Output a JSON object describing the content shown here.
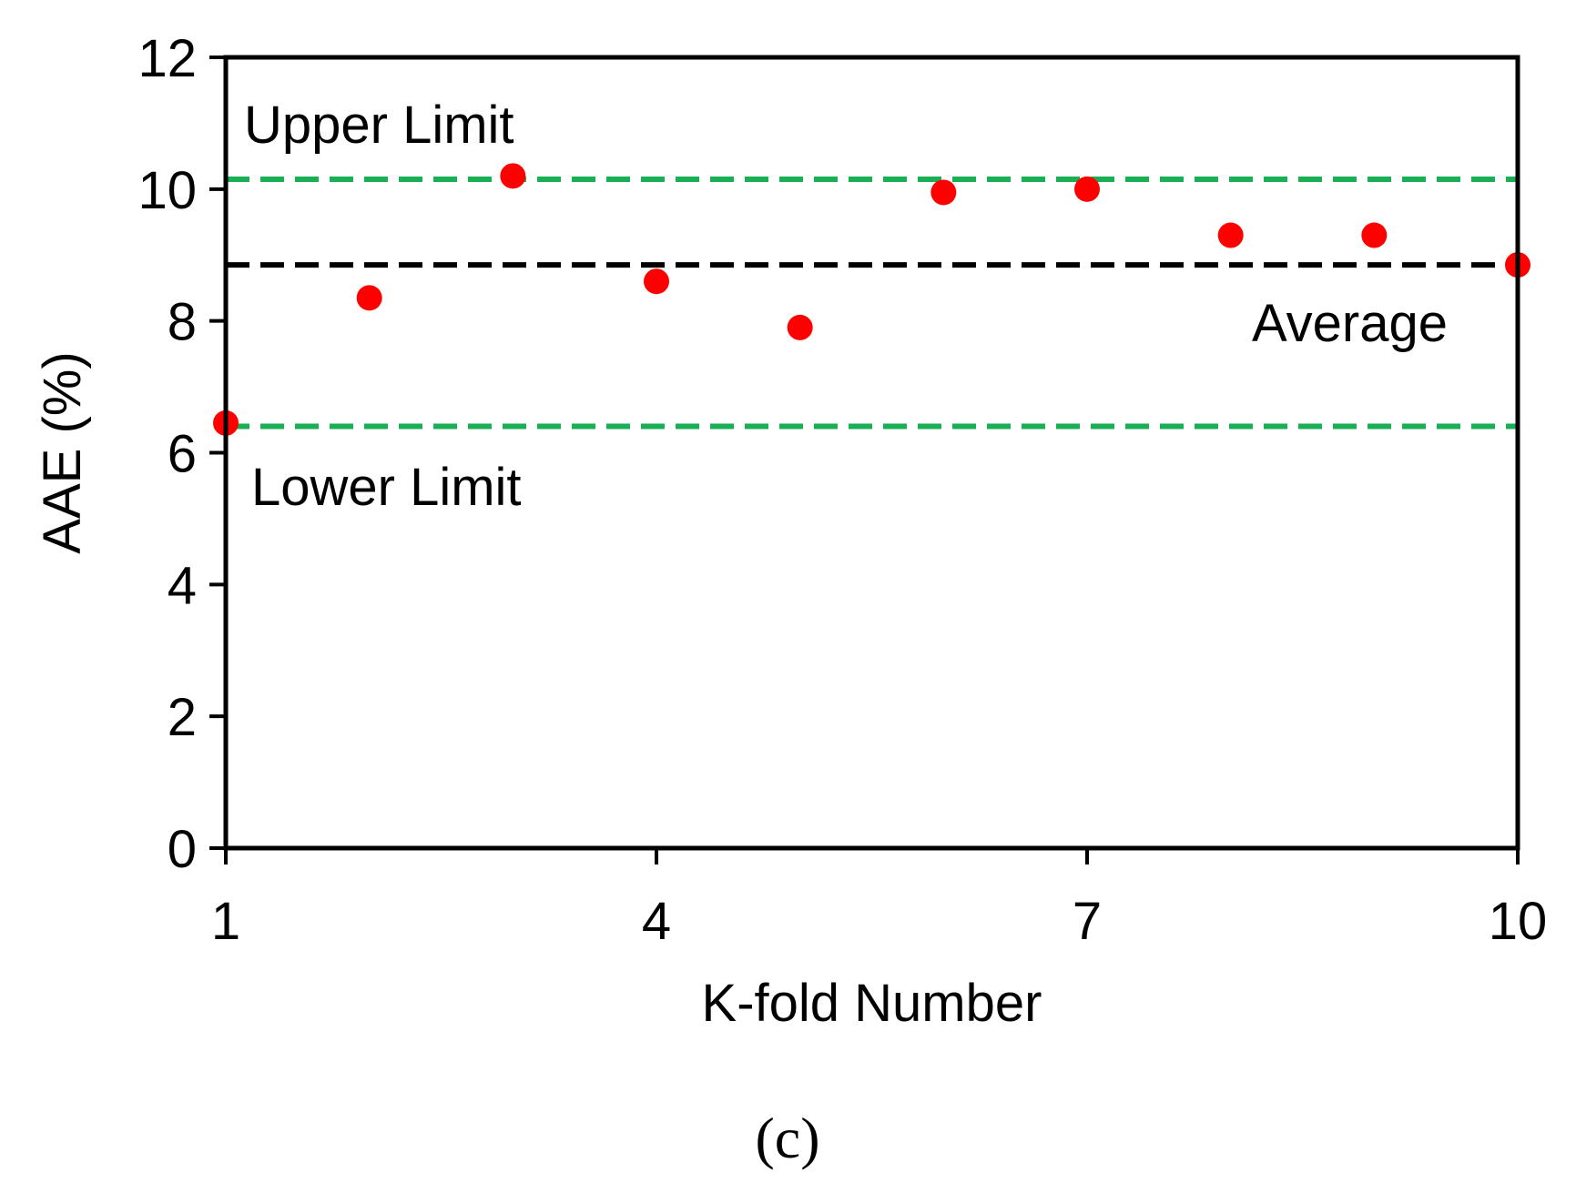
{
  "chart_data": {
    "type": "scatter",
    "xlabel": "K-fold Number",
    "ylabel": "AAE  (%)",
    "xlim": [
      1,
      10
    ],
    "ylim": [
      0,
      12
    ],
    "xticks": [
      1,
      4,
      7,
      10
    ],
    "yticks": [
      0,
      2,
      4,
      6,
      8,
      10,
      12
    ],
    "grid": false,
    "series": [
      {
        "x": [
          1,
          2,
          3,
          4,
          5,
          6,
          7,
          8,
          9,
          10
        ],
        "y": [
          6.45,
          8.35,
          10.2,
          8.6,
          7.9,
          9.95,
          10.0,
          9.3,
          9.3,
          8.85
        ],
        "color": "#ff0000"
      }
    ],
    "reference_lines": [
      {
        "label": "Upper Limit",
        "y": 10.15,
        "color": "#1aaf54",
        "style": "dashed"
      },
      {
        "label": "Average",
        "y": 8.85,
        "color": "#000000",
        "style": "dashed"
      },
      {
        "label": "Lower Limit",
        "y": 6.4,
        "color": "#1aaf54",
        "style": "dashed"
      }
    ],
    "panel_label": "(c)"
  }
}
